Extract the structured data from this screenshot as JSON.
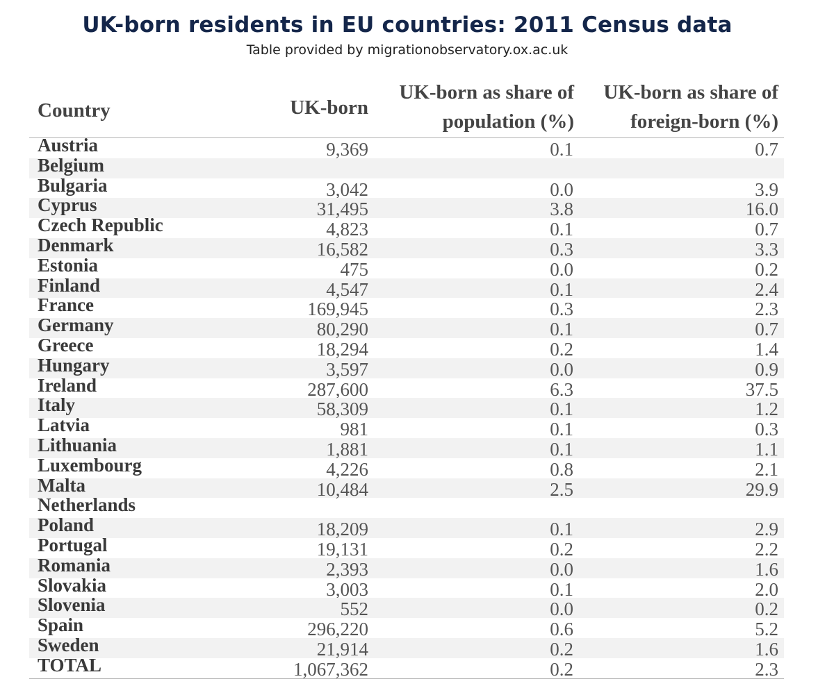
{
  "title": "UK-born residents in EU countries: 2011 Census data",
  "subtitle": "Table provided by migrationobservatory.ox.ac.uk",
  "table": {
    "headers": {
      "country": "Country",
      "uk_born": "UK-born",
      "share_population_line1": "UK-born as share of",
      "share_population_line2": "population (%)",
      "share_foreign_line1": "UK-born as share of",
      "share_foreign_line2": "foreign-born (%)"
    },
    "rows": [
      {
        "country": "Austria",
        "uk_born": "9,369",
        "pop_share": "0.1",
        "fb_share": "0.7"
      },
      {
        "country": "Belgium",
        "uk_born": "",
        "pop_share": "",
        "fb_share": ""
      },
      {
        "country": "Bulgaria",
        "uk_born": "3,042",
        "pop_share": "0.0",
        "fb_share": "3.9"
      },
      {
        "country": "Cyprus",
        "uk_born": "31,495",
        "pop_share": "3.8",
        "fb_share": "16.0"
      },
      {
        "country": "Czech Republic",
        "uk_born": "4,823",
        "pop_share": "0.1",
        "fb_share": "0.7"
      },
      {
        "country": "Denmark",
        "uk_born": "16,582",
        "pop_share": "0.3",
        "fb_share": "3.3"
      },
      {
        "country": "Estonia",
        "uk_born": "475",
        "pop_share": "0.0",
        "fb_share": "0.2"
      },
      {
        "country": "Finland",
        "uk_born": "4,547",
        "pop_share": "0.1",
        "fb_share": "2.4"
      },
      {
        "country": "France",
        "uk_born": "169,945",
        "pop_share": "0.3",
        "fb_share": "2.3"
      },
      {
        "country": "Germany",
        "uk_born": "80,290",
        "pop_share": "0.1",
        "fb_share": "0.7"
      },
      {
        "country": "Greece",
        "uk_born": "18,294",
        "pop_share": "0.2",
        "fb_share": "1.4"
      },
      {
        "country": "Hungary",
        "uk_born": "3,597",
        "pop_share": "0.0",
        "fb_share": "0.9"
      },
      {
        "country": "Ireland",
        "uk_born": "287,600",
        "pop_share": "6.3",
        "fb_share": "37.5"
      },
      {
        "country": "Italy",
        "uk_born": "58,309",
        "pop_share": "0.1",
        "fb_share": "1.2"
      },
      {
        "country": "Latvia",
        "uk_born": "981",
        "pop_share": "0.1",
        "fb_share": "0.3"
      },
      {
        "country": "Lithuania",
        "uk_born": "1,881",
        "pop_share": "0.1",
        "fb_share": "1.1"
      },
      {
        "country": "Luxembourg",
        "uk_born": "4,226",
        "pop_share": "0.8",
        "fb_share": "2.1"
      },
      {
        "country": "Malta",
        "uk_born": "10,484",
        "pop_share": "2.5",
        "fb_share": "29.9"
      },
      {
        "country": "Netherlands",
        "uk_born": "",
        "pop_share": "",
        "fb_share": ""
      },
      {
        "country": "Poland",
        "uk_born": "18,209",
        "pop_share": "0.1",
        "fb_share": "2.9"
      },
      {
        "country": "Portugal",
        "uk_born": "19,131",
        "pop_share": "0.2",
        "fb_share": "2.2"
      },
      {
        "country": "Romania",
        "uk_born": "2,393",
        "pop_share": "0.0",
        "fb_share": "1.6"
      },
      {
        "country": "Slovakia",
        "uk_born": "3,003",
        "pop_share": "0.1",
        "fb_share": "2.0"
      },
      {
        "country": "Slovenia",
        "uk_born": "552",
        "pop_share": "0.0",
        "fb_share": "0.2"
      },
      {
        "country": "Spain",
        "uk_born": "296,220",
        "pop_share": "0.6",
        "fb_share": "5.2"
      },
      {
        "country": "Sweden",
        "uk_born": "21,914",
        "pop_share": "0.2",
        "fb_share": "1.6"
      },
      {
        "country": "TOTAL",
        "uk_born": "1,067,362",
        "pop_share": "0.2",
        "fb_share": "2.3"
      }
    ]
  }
}
